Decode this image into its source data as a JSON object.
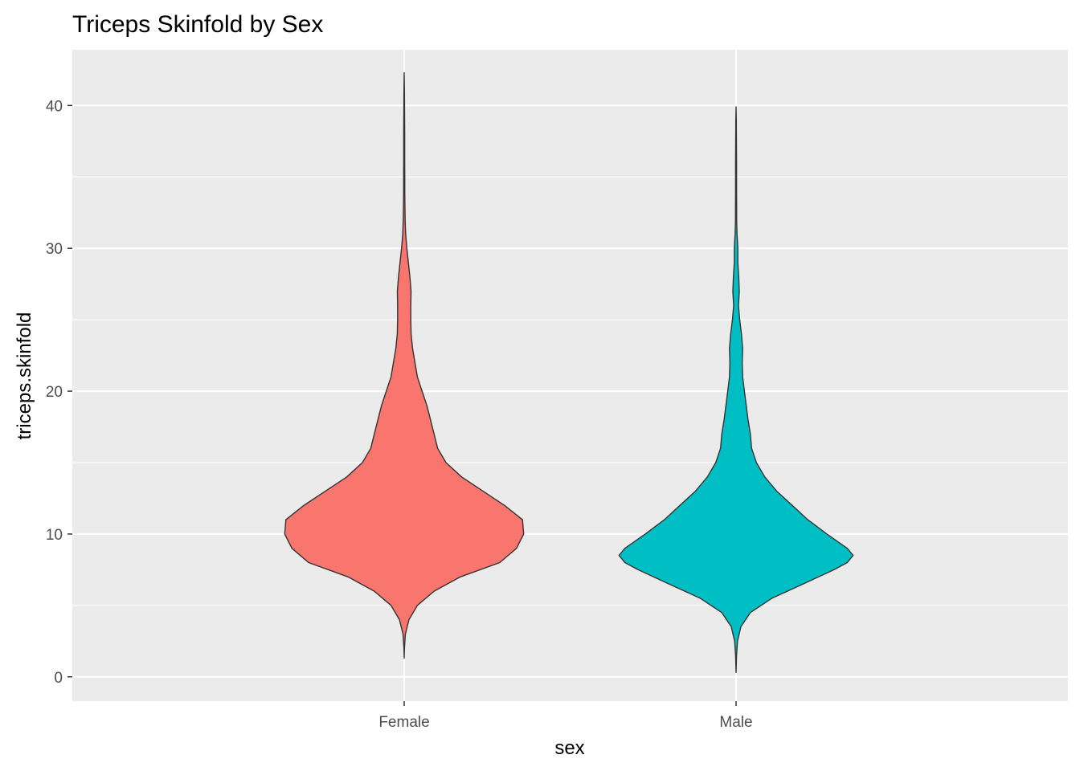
{
  "chart_data": {
    "type": "violin",
    "title": "Triceps Skinfold by Sex",
    "xlabel": "sex",
    "ylabel": "triceps.skinfold",
    "categories": [
      "Female",
      "Male"
    ],
    "ylim": [
      -1.7,
      43.9
    ],
    "y_ticks": [
      0,
      10,
      20,
      30,
      40
    ],
    "y_tick_labels": [
      "0",
      "10",
      "20",
      "30",
      "40"
    ],
    "panel_background": "#ebebeb",
    "grid_color": "#ffffff",
    "outline_color": "#333333",
    "legend": "none",
    "series": [
      {
        "category": "Female",
        "color": "#F8766D",
        "y_min": 1.3,
        "y_max": 42.3,
        "density_profile": [
          [
            1.3,
            0.0
          ],
          [
            2.0,
            0.002
          ],
          [
            3.0,
            0.01
          ],
          [
            4.0,
            0.04
          ],
          [
            5.0,
            0.11
          ],
          [
            6.0,
            0.25
          ],
          [
            7.0,
            0.47
          ],
          [
            8.0,
            0.8
          ],
          [
            9.0,
            0.94
          ],
          [
            10.0,
            1.0
          ],
          [
            11.0,
            0.99
          ],
          [
            12.0,
            0.84
          ],
          [
            13.0,
            0.66
          ],
          [
            14.0,
            0.48
          ],
          [
            15.0,
            0.35
          ],
          [
            16.0,
            0.28
          ],
          [
            17.0,
            0.25
          ],
          [
            18.0,
            0.22
          ],
          [
            19.0,
            0.19
          ],
          [
            20.0,
            0.15
          ],
          [
            21.0,
            0.11
          ],
          [
            22.0,
            0.09
          ],
          [
            23.0,
            0.07
          ],
          [
            24.0,
            0.058
          ],
          [
            25.0,
            0.055
          ],
          [
            26.0,
            0.055
          ],
          [
            27.0,
            0.057
          ],
          [
            28.0,
            0.048
          ],
          [
            29.0,
            0.035
          ],
          [
            30.0,
            0.022
          ],
          [
            31.0,
            0.012
          ],
          [
            32.0,
            0.008
          ],
          [
            33.0,
            0.006
          ],
          [
            34.0,
            0.005
          ],
          [
            35.0,
            0.005
          ],
          [
            36.0,
            0.004
          ],
          [
            38.0,
            0.004
          ],
          [
            40.0,
            0.003
          ],
          [
            41.0,
            0.002
          ],
          [
            42.3,
            0.0
          ]
        ]
      },
      {
        "category": "Male",
        "color": "#00BFC4",
        "y_min": 0.3,
        "y_max": 39.9,
        "density_profile": [
          [
            0.3,
            0.0
          ],
          [
            1.5,
            0.004
          ],
          [
            2.5,
            0.012
          ],
          [
            3.5,
            0.04
          ],
          [
            4.5,
            0.12
          ],
          [
            5.5,
            0.3
          ],
          [
            6.5,
            0.56
          ],
          [
            7.5,
            0.82
          ],
          [
            8.0,
            0.93
          ],
          [
            8.5,
            0.98
          ],
          [
            9.0,
            0.93
          ],
          [
            10.0,
            0.76
          ],
          [
            11.0,
            0.6
          ],
          [
            12.0,
            0.47
          ],
          [
            13.0,
            0.34
          ],
          [
            14.0,
            0.24
          ],
          [
            15.0,
            0.17
          ],
          [
            16.0,
            0.13
          ],
          [
            17.0,
            0.12
          ],
          [
            18.0,
            0.1
          ],
          [
            19.0,
            0.085
          ],
          [
            20.0,
            0.07
          ],
          [
            21.0,
            0.055
          ],
          [
            22.0,
            0.052
          ],
          [
            23.0,
            0.055
          ],
          [
            24.0,
            0.045
          ],
          [
            25.0,
            0.03
          ],
          [
            26.0,
            0.02
          ],
          [
            27.0,
            0.027
          ],
          [
            28.0,
            0.022
          ],
          [
            29.0,
            0.015
          ],
          [
            30.0,
            0.015
          ],
          [
            31.0,
            0.008
          ],
          [
            32.0,
            0.005
          ],
          [
            33.0,
            0.005
          ],
          [
            34.0,
            0.004
          ],
          [
            36.0,
            0.004
          ],
          [
            38.0,
            0.003
          ],
          [
            39.0,
            0.002
          ],
          [
            39.9,
            0.0
          ]
        ]
      }
    ]
  }
}
